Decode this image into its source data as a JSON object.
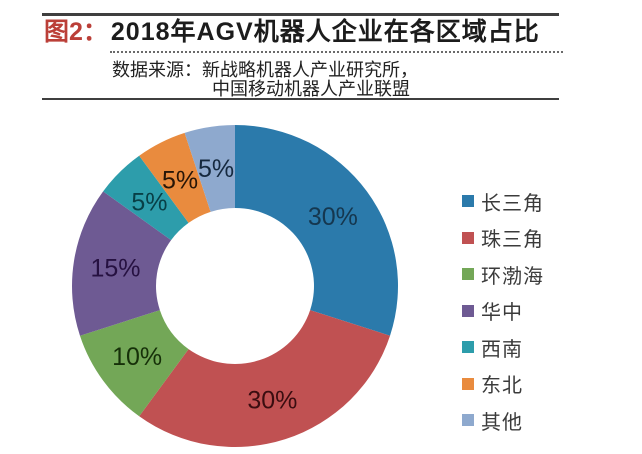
{
  "header": {
    "figure_label": "图2：",
    "title": "2018年AGV机器人企业在各区域占比",
    "source_line1": "数据来源：新战略机器人产业研究所，",
    "source_line2": "中国移动机器人产业联盟"
  },
  "chart_data": {
    "type": "pie",
    "subtype": "donut",
    "title": "2018年AGV机器人企业在各区域占比",
    "unit": "%",
    "start_angle_deg": 0,
    "direction": "clockwise",
    "hole_ratio": 0.48,
    "legend_position": "right",
    "categories": [
      "长三角",
      "珠三角",
      "环渤海",
      "华中",
      "西南",
      "东北",
      "其他"
    ],
    "values": [
      30,
      30,
      10,
      15,
      5,
      5,
      5
    ],
    "segments": [
      {
        "label": "长三角",
        "slug": "yangtze-river-delta",
        "value": 30,
        "display": "30%",
        "color": "#2b7aab",
        "label_color": "#15374f"
      },
      {
        "label": "珠三角",
        "slug": "pearl-river-delta",
        "value": 30,
        "display": "30%",
        "color": "#c05152",
        "label_color": "#3a0d10"
      },
      {
        "label": "环渤海",
        "slug": "bohai-rim",
        "value": 10,
        "display": "10%",
        "color": "#73a757",
        "label_color": "#163009"
      },
      {
        "label": "华中",
        "slug": "central-china",
        "value": 15,
        "display": "15%",
        "color": "#6e5a93",
        "label_color": "#261141"
      },
      {
        "label": "西南",
        "slug": "southwest",
        "value": 5,
        "display": "5%",
        "color": "#2d9dab",
        "label_color": "#083f46"
      },
      {
        "label": "东北",
        "slug": "northeast",
        "value": 5,
        "display": "5%",
        "color": "#e98b3e",
        "label_color": "#281607"
      },
      {
        "label": "其他",
        "slug": "other",
        "value": 5,
        "display": "5%",
        "color": "#8ea9ce",
        "label_color": "#15293f"
      }
    ]
  }
}
